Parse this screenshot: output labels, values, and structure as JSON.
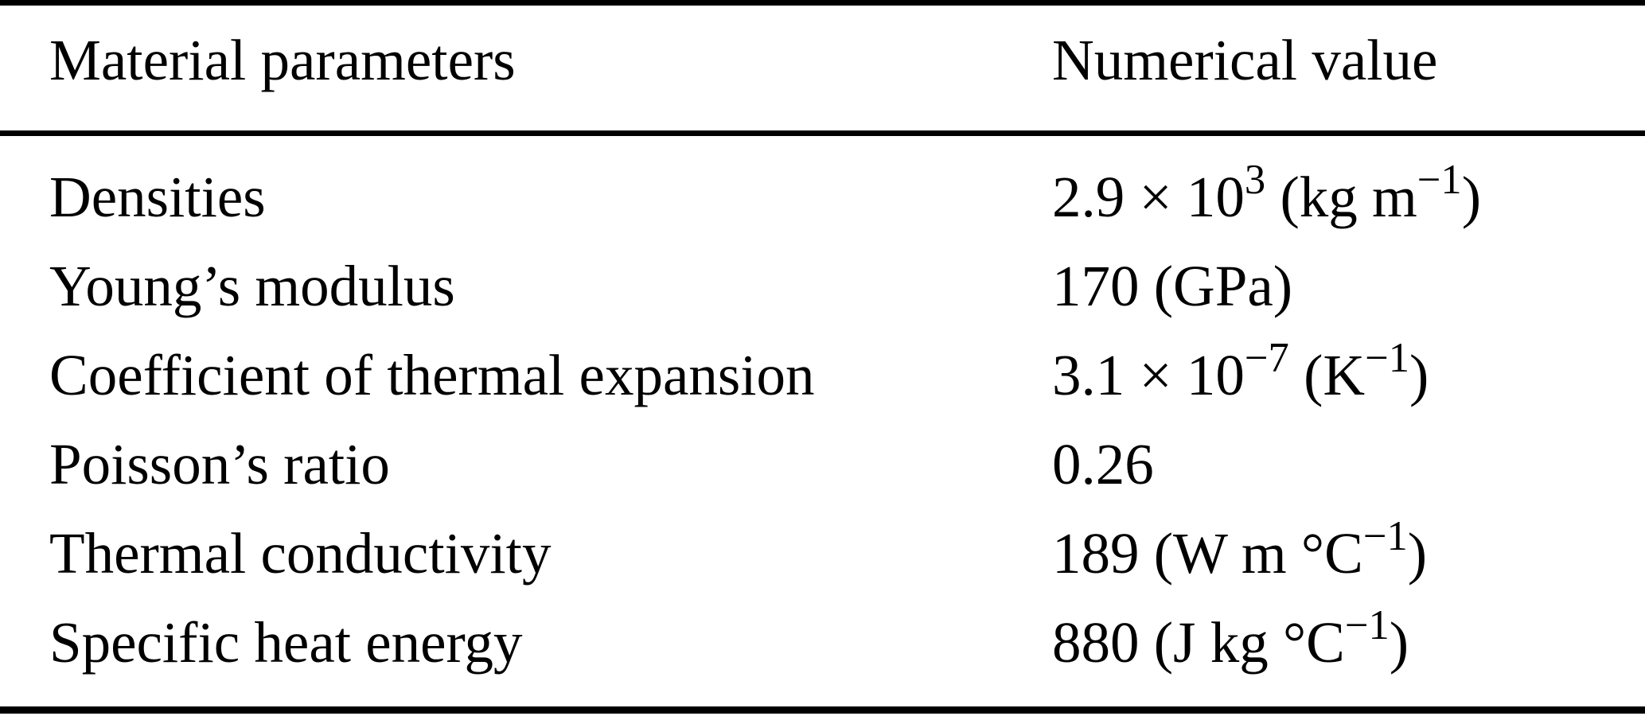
{
  "page": {
    "background_color": "#ffffff",
    "text_color": "#000000"
  },
  "table": {
    "columns": [
      "Material parameters",
      "Numerical value"
    ],
    "rows": [
      {
        "parameter": "Densities",
        "value": [
          {
            "t": "2.9 × 10"
          },
          {
            "t": "3",
            "sup": true
          },
          {
            "t": " (kg m"
          },
          {
            "t": "−1",
            "sup": true
          },
          {
            "t": ")"
          }
        ]
      },
      {
        "parameter": "Young’s modulus",
        "value": [
          {
            "t": "170 (GPa)"
          }
        ]
      },
      {
        "parameter": "Coefficient of thermal expansion",
        "value": [
          {
            "t": "3.1 × 10"
          },
          {
            "t": "−7",
            "sup": true
          },
          {
            "t": " (K"
          },
          {
            "t": "−1",
            "sup": true
          },
          {
            "t": ")"
          }
        ]
      },
      {
        "parameter": "Poisson’s ratio",
        "value": [
          {
            "t": "0.26"
          }
        ]
      },
      {
        "parameter": "Thermal conductivity",
        "value": [
          {
            "t": "189 (W m °C"
          },
          {
            "t": "−1",
            "sup": true
          },
          {
            "t": ")"
          }
        ]
      },
      {
        "parameter": "Specific heat energy",
        "value": [
          {
            "t": "880 (J kg °C"
          },
          {
            "t": "−1",
            "sup": true
          },
          {
            "t": ")"
          }
        ]
      }
    ]
  },
  "chart_data": {
    "type": "table",
    "columns": [
      "Material parameters",
      "Numerical value"
    ],
    "rows": [
      [
        "Densities",
        "2.9 × 10^3 (kg m^−1)"
      ],
      [
        "Young’s modulus",
        "170 (GPa)"
      ],
      [
        "Coefficient of thermal expansion",
        "3.1 × 10^−7 (K^−1)"
      ],
      [
        "Poisson’s ratio",
        "0.26"
      ],
      [
        "Thermal conductivity",
        "189 (W m °C^−1)"
      ],
      [
        "Specific heat energy",
        "880 (J kg °C^−1)"
      ]
    ]
  }
}
